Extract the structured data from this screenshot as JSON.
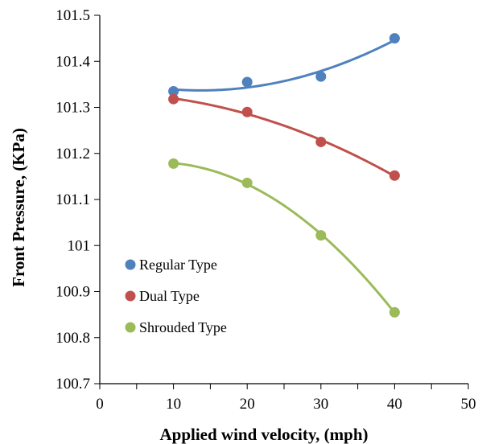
{
  "chart_data": {
    "type": "scatter",
    "xlabel": "Applied wind velocity, (mph)",
    "ylabel": "Front Pressure, (KPa)",
    "xlim": [
      0,
      50
    ],
    "ylim": [
      100.7,
      101.5
    ],
    "xticks": [
      0,
      10,
      20,
      30,
      40,
      50
    ],
    "yticks": [
      100.7,
      100.8,
      100.9,
      101,
      101.1,
      101.2,
      101.3,
      101.4,
      101.5
    ],
    "ytick_labels": [
      "100.7",
      "100.8",
      "100.9",
      "101",
      "101.1",
      "101.2",
      "101.3",
      "101.4",
      "101.5"
    ],
    "grid": false,
    "legend_position": "bottom-left",
    "trendline": "polynomial-order-2",
    "series": [
      {
        "name": "Regular Type",
        "color": "#4f81bd",
        "x": [
          10,
          20,
          30,
          40
        ],
        "y": [
          101.335,
          101.355,
          101.367,
          101.45
        ]
      },
      {
        "name": "Dual Type",
        "color": "#c0504d",
        "x": [
          10,
          20,
          30,
          40
        ],
        "y": [
          101.318,
          101.29,
          101.225,
          101.152
        ]
      },
      {
        "name": "Shrouded Type",
        "color": "#9bbb59",
        "x": [
          10,
          20,
          30,
          40
        ],
        "y": [
          101.178,
          101.136,
          101.022,
          100.855
        ]
      }
    ]
  }
}
